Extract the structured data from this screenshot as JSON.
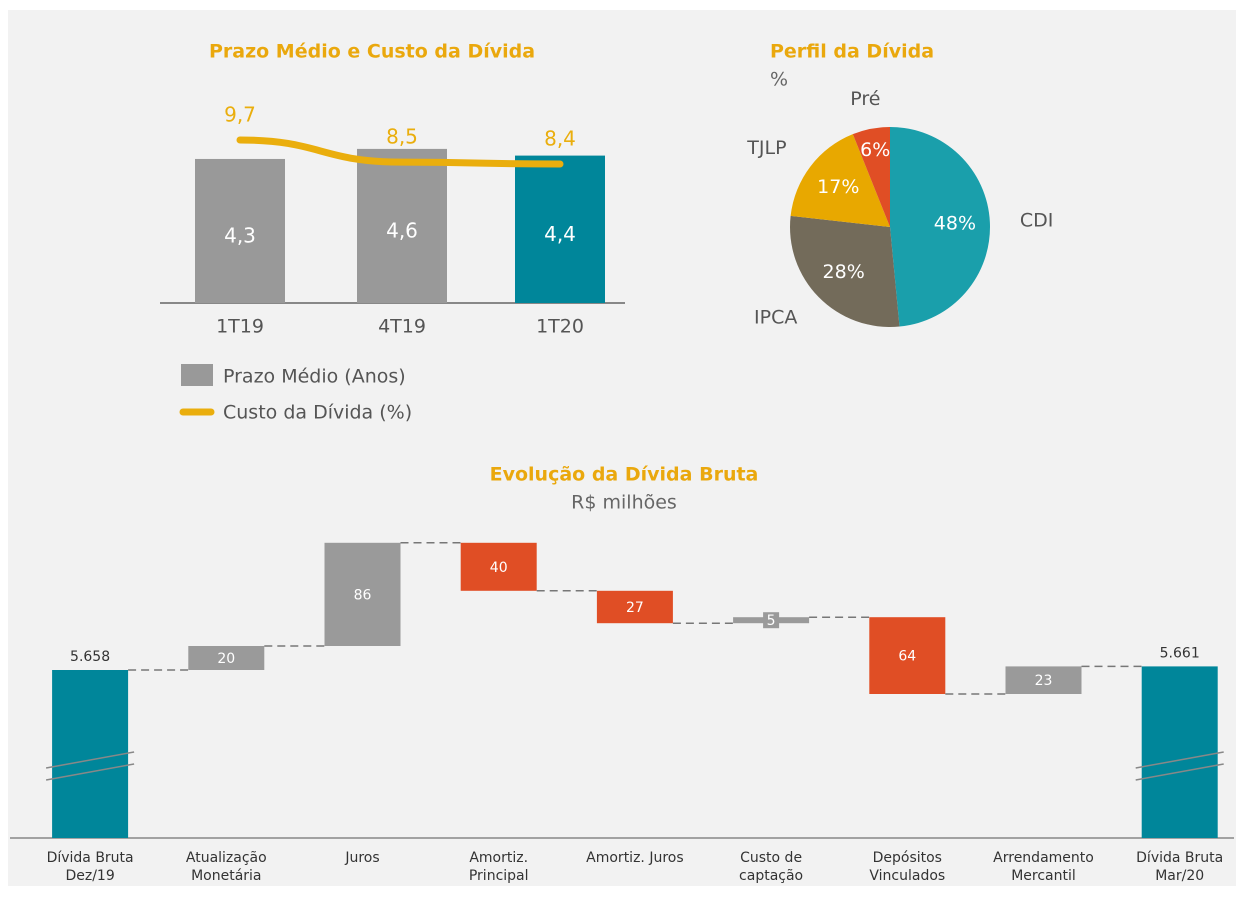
{
  "chart_data": [
    {
      "type": "bar_line",
      "title": "Prazo Médio e Custo da Dívida",
      "categories": [
        "1T19",
        "4T19",
        "1T20"
      ],
      "series": [
        {
          "name": "Prazo Médio (Anos)",
          "type": "bar",
          "color": "#999999",
          "colors": [
            "#999999",
            "#999999",
            "#00869a"
          ],
          "values": [
            4.3,
            4.6,
            4.4
          ],
          "value_labels": [
            "4,3",
            "4,6",
            "4,4"
          ]
        },
        {
          "name": "Custo da Dívida (%)",
          "type": "line",
          "color": "#eaae0d",
          "values": [
            9.7,
            8.5,
            8.4
          ],
          "value_labels": [
            "9,7",
            "8,5",
            "8,4"
          ]
        }
      ]
    },
    {
      "type": "pie",
      "title": "Perfil da Dívida",
      "subtitle": "%",
      "categories": [
        "CDI",
        "IPCA",
        "TJLP",
        "Pré"
      ],
      "values": [
        48,
        28,
        17,
        6
      ],
      "value_labels": [
        "48%",
        "28%",
        "17%",
        "6%"
      ],
      "colors": [
        "#1a9fab",
        "#736b5a",
        "#e8a800",
        "#e04e25"
      ]
    },
    {
      "type": "waterfall",
      "title": "Evolução da Dívida Bruta",
      "subtitle": "R$ milhões",
      "categories": [
        [
          "Dívida Bruta",
          "Dez/19"
        ],
        [
          "Atualização",
          "Monetária"
        ],
        [
          "Juros"
        ],
        [
          "Amortiz.",
          "Principal"
        ],
        [
          "Amortiz. Juros"
        ],
        [
          "Custo de",
          "captação"
        ],
        [
          "Depósitos",
          "Vinculados"
        ],
        [
          "Arrendamento",
          "Mercantil"
        ],
        [
          "Dívida Bruta",
          "Mar/20"
        ]
      ],
      "values": [
        5658,
        20,
        86,
        40,
        27,
        5,
        64,
        23,
        5661
      ],
      "value_labels": [
        "5.658",
        "20",
        "86",
        "40",
        "27",
        "5",
        "64",
        "23",
        "5.661"
      ],
      "kinds": [
        "total",
        "increase",
        "increase",
        "decrease",
        "decrease",
        "increase",
        "decrease",
        "increase",
        "total"
      ],
      "colors": {
        "total": "#00869a",
        "increase": "#9a9a9a",
        "decrease": "#e04e25"
      },
      "axis_break": true
    }
  ]
}
